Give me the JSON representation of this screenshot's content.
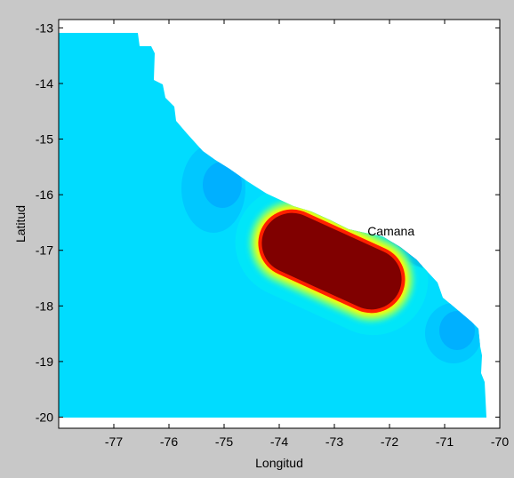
{
  "map": {
    "type": "heatmap",
    "xlabel": "Longitud",
    "ylabel": "Latitud",
    "xlim": [
      -78,
      -70
    ],
    "ylim": [
      -20.2,
      -12.85
    ],
    "xticks": [
      -77,
      -76,
      -75,
      -74,
      -73,
      -72,
      -71,
      -70
    ],
    "yticks": [
      -13,
      -14,
      -15,
      -16,
      -17,
      -18,
      -19,
      -20
    ],
    "annotation": {
      "text": "Camana",
      "lon": -72.4,
      "lat": -16.65
    },
    "colors": {
      "background": "#c8c8c8",
      "plot_area": "#ffffff",
      "sea": "#00dcff",
      "level_1": "#00c0ff",
      "level_2": "#00a8ff",
      "level_3": "#0060e0",
      "level_4": "#0000a0",
      "core": "#800000",
      "halo_red": "#ff2000",
      "halo_yellow": "#ffff00",
      "halo_green": "#60ff90"
    }
  }
}
